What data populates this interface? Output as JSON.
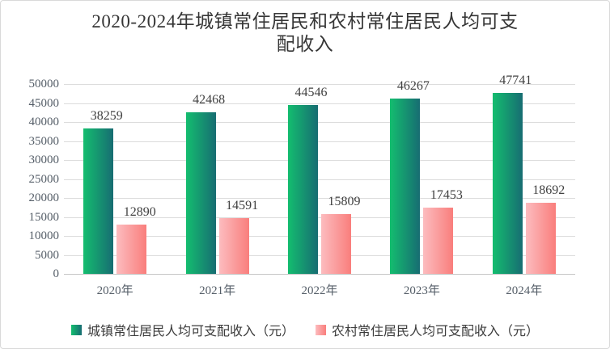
{
  "frame": {
    "background": "#ffffff",
    "border_color": "#d9d9d9"
  },
  "chart_data": {
    "type": "bar",
    "title": "2020-2024年城镇常住居民和农村常住居民人均可支配收入",
    "title_lines": [
      "2020-2024年城镇常住居民和农村常住居民人均可支",
      "配收入"
    ],
    "categories": [
      "2020年",
      "2021年",
      "2022年",
      "2023年",
      "2024年"
    ],
    "series": [
      {
        "name": "城镇常住居民人均可支配收入（元）",
        "values": [
          38259,
          42468,
          44546,
          46267,
          47741
        ],
        "color_start": "#14bd6f",
        "color_end": "#176d72"
      },
      {
        "name": "农村常住居民人均可支配收入（元）",
        "values": [
          12890,
          14591,
          15809,
          17453,
          18692
        ],
        "color_start": "#fcbcbf",
        "color_end": "#f97e7c"
      }
    ],
    "xlabel": "",
    "ylabel": "",
    "ylim": [
      0,
      50000
    ],
    "y_ticks": [
      0,
      5000,
      10000,
      15000,
      20000,
      25000,
      30000,
      35000,
      40000,
      45000,
      50000
    ],
    "grid": true,
    "legend_position": "bottom",
    "colors": {
      "gridline": "#dcdcdc",
      "baseline": "#c6c6c6",
      "axis_label": "#555e68",
      "data_label": "#404040",
      "title": "#363636"
    }
  }
}
